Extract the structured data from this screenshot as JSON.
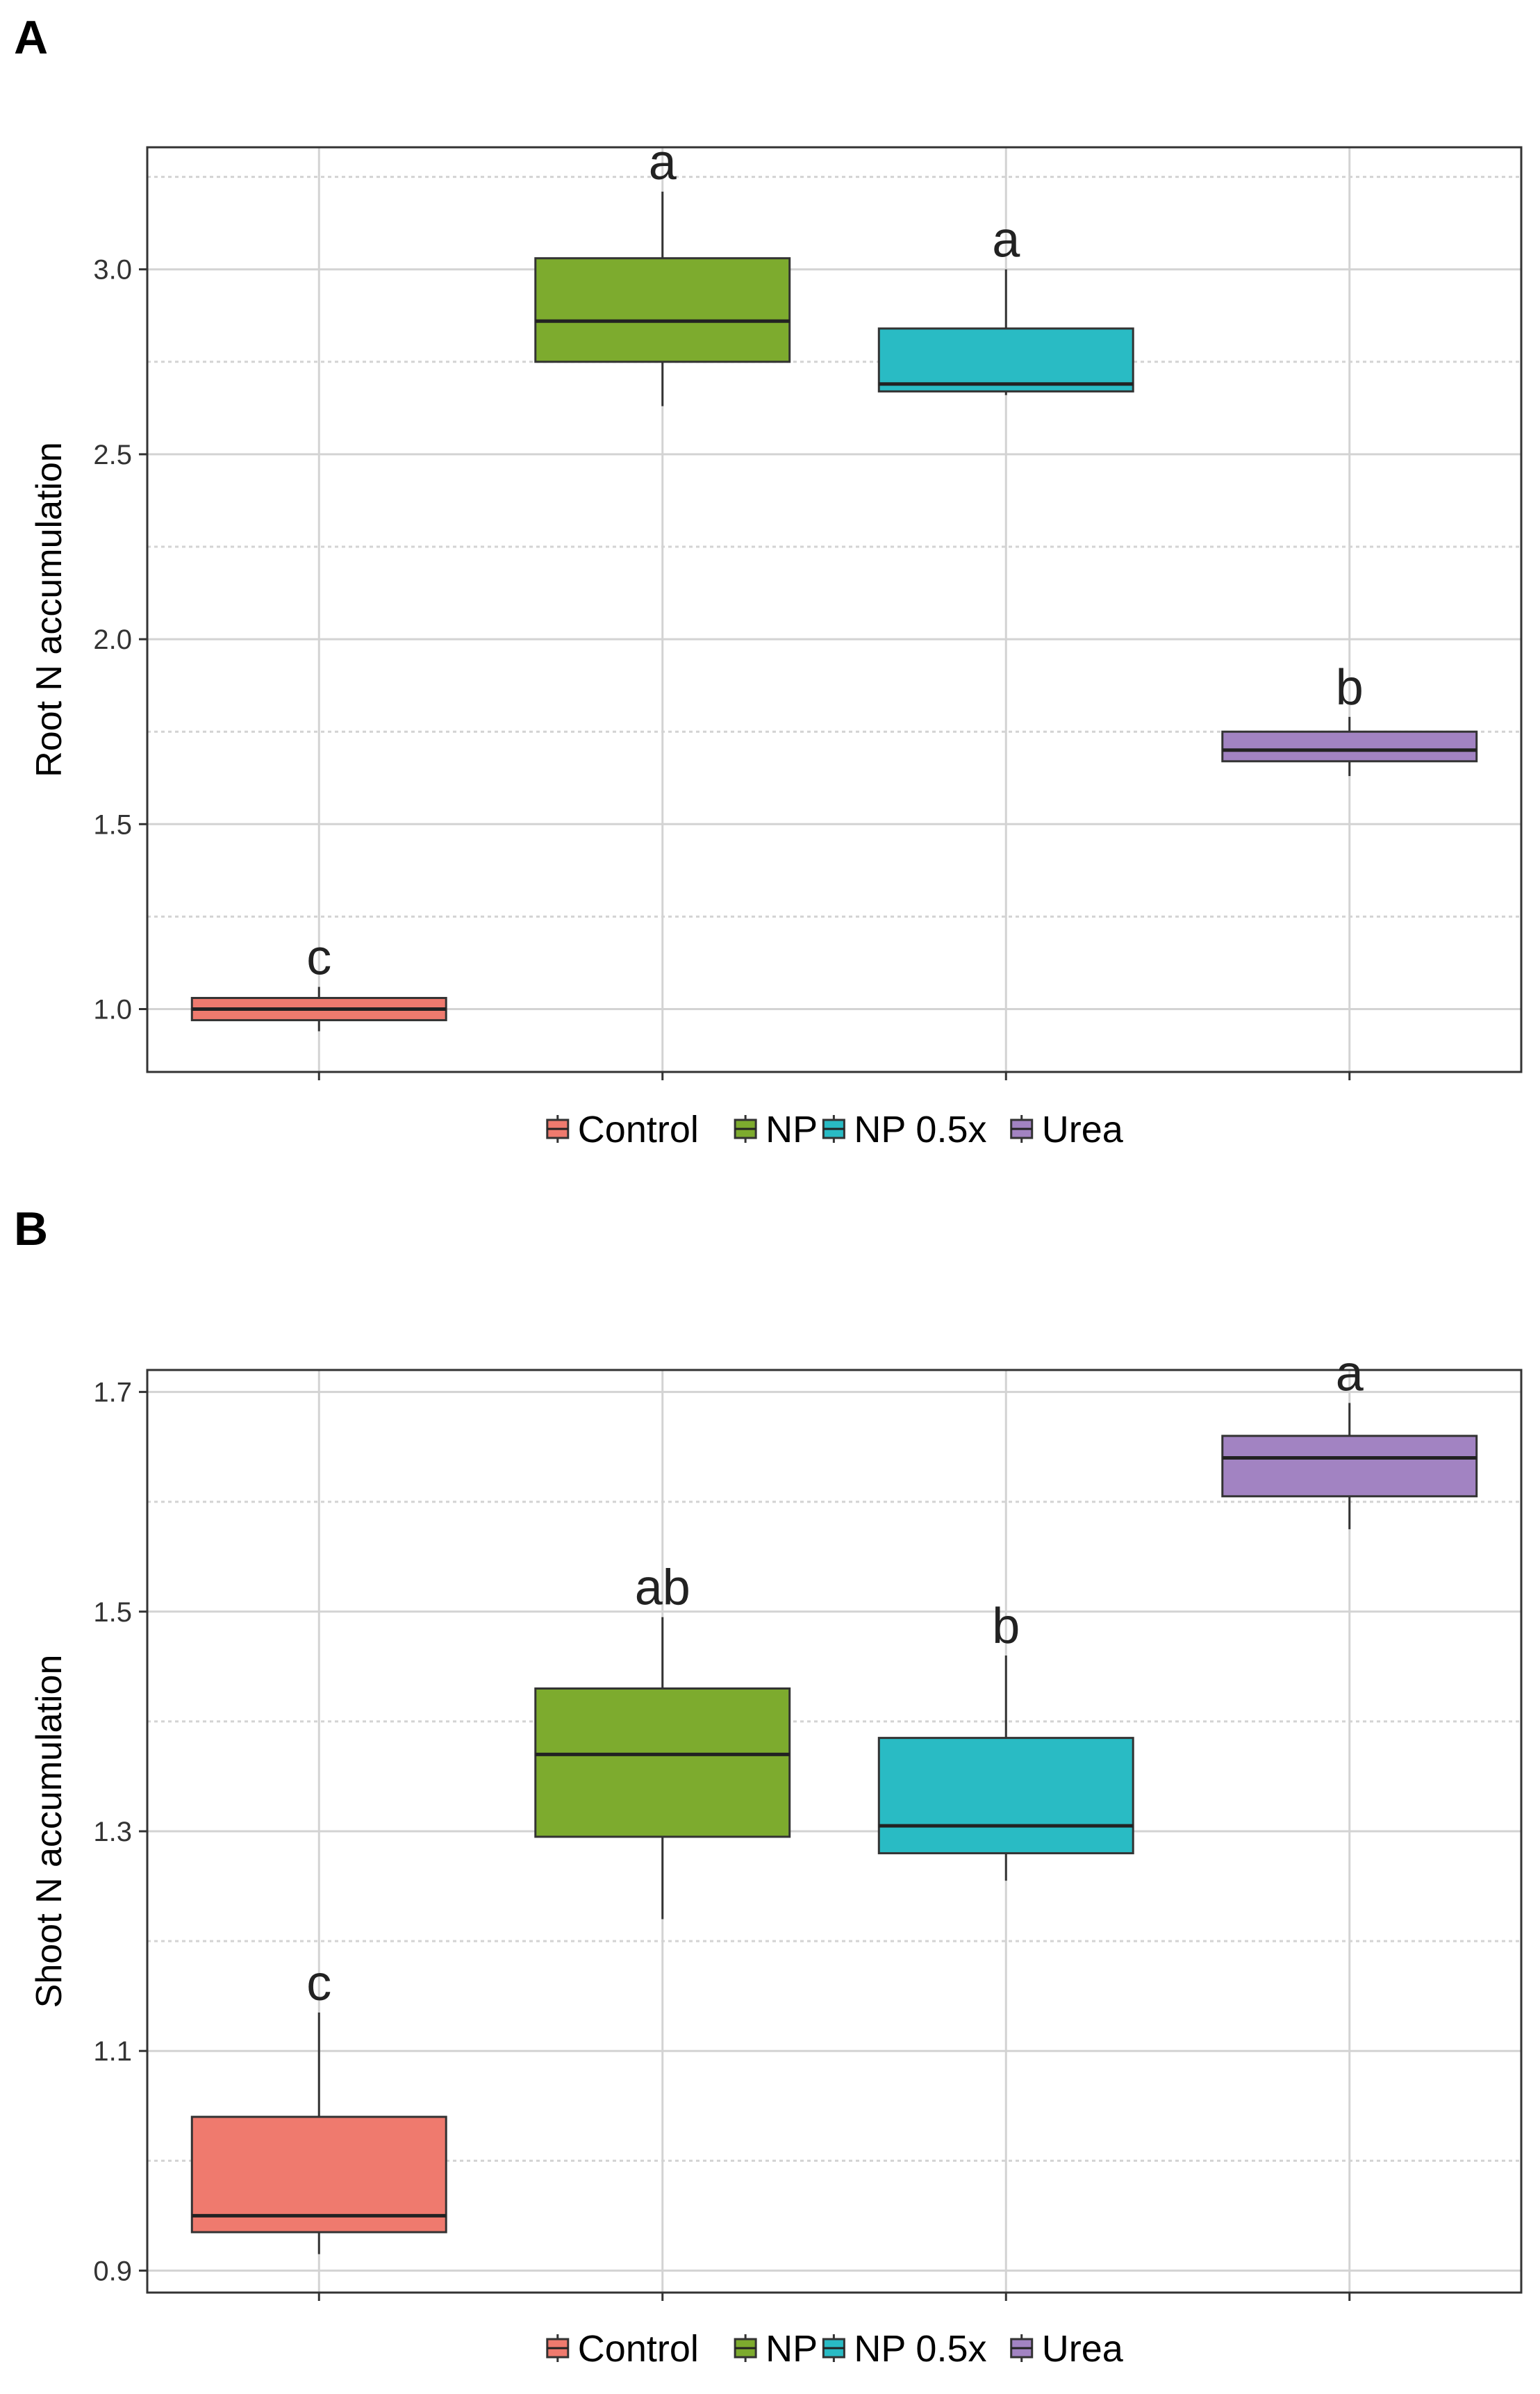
{
  "panels": {
    "a_label": "A",
    "b_label": "B"
  },
  "colors": {
    "control": "#EF7A6E",
    "np": "#7DAB2E",
    "np05": "#29BBC4",
    "urea": "#A283C2",
    "grid": "#d3d3d3",
    "frame": "#333333"
  },
  "chart_data": [
    {
      "type": "box",
      "panel": "A",
      "ylabel": "Root N accumulation",
      "xlabel": "",
      "ylim": [
        0.83,
        3.33
      ],
      "yticks": [
        1.0,
        1.5,
        2.0,
        2.5,
        3.0
      ],
      "ytick_labels": [
        "1.0",
        "1.5",
        "2.0",
        "2.5",
        "3.0"
      ],
      "minor_gridlines": [
        1.25,
        1.75,
        2.25,
        2.75,
        3.25
      ],
      "categories": [
        "Control",
        "NP",
        "NP 0.5x",
        "Urea"
      ],
      "boxes": [
        {
          "name": "Control",
          "min": 0.94,
          "q1": 0.97,
          "median": 1.0,
          "q3": 1.03,
          "max": 1.06,
          "letter": "c"
        },
        {
          "name": "NP",
          "min": 2.63,
          "q1": 2.75,
          "median": 2.86,
          "q3": 3.03,
          "max": 3.21,
          "letter": "a"
        },
        {
          "name": "NP 0.5x",
          "min": 2.66,
          "q1": 2.67,
          "median": 2.69,
          "q3": 2.84,
          "max": 3.0,
          "letter": "a"
        },
        {
          "name": "Urea",
          "min": 1.63,
          "q1": 1.67,
          "median": 1.7,
          "q3": 1.75,
          "max": 1.79,
          "letter": "b"
        }
      ],
      "legend": {
        "position": "bottom",
        "entries": [
          "Control",
          "NP",
          "NP 0.5x",
          "Urea"
        ]
      }
    },
    {
      "type": "box",
      "panel": "B",
      "ylabel": "Shoot N accumulation",
      "xlabel": "",
      "ylim": [
        0.88,
        1.72
      ],
      "yticks": [
        0.9,
        1.1,
        1.3,
        1.5,
        1.7
      ],
      "ytick_labels": [
        "0.9",
        "1.1",
        "1.3",
        "1.5",
        "1.7"
      ],
      "minor_gridlines": [
        1.0,
        1.2,
        1.4,
        1.6
      ],
      "categories": [
        "Control",
        "NP",
        "NP 0.5x",
        "Urea"
      ],
      "boxes": [
        {
          "name": "Control",
          "min": 0.915,
          "q1": 0.935,
          "median": 0.95,
          "q3": 1.04,
          "max": 1.135,
          "letter": "c"
        },
        {
          "name": "NP",
          "min": 1.22,
          "q1": 1.295,
          "median": 1.37,
          "q3": 1.43,
          "max": 1.495,
          "letter": "ab"
        },
        {
          "name": "NP 0.5x",
          "min": 1.255,
          "q1": 1.28,
          "median": 1.305,
          "q3": 1.385,
          "max": 1.46,
          "letter": "b"
        },
        {
          "name": "Urea",
          "min": 1.575,
          "q1": 1.605,
          "median": 1.64,
          "q3": 1.66,
          "max": 1.69,
          "letter": "a"
        }
      ],
      "legend": {
        "position": "bottom",
        "entries": [
          "Control",
          "NP",
          "NP 0.5x",
          "Urea"
        ]
      }
    }
  ]
}
